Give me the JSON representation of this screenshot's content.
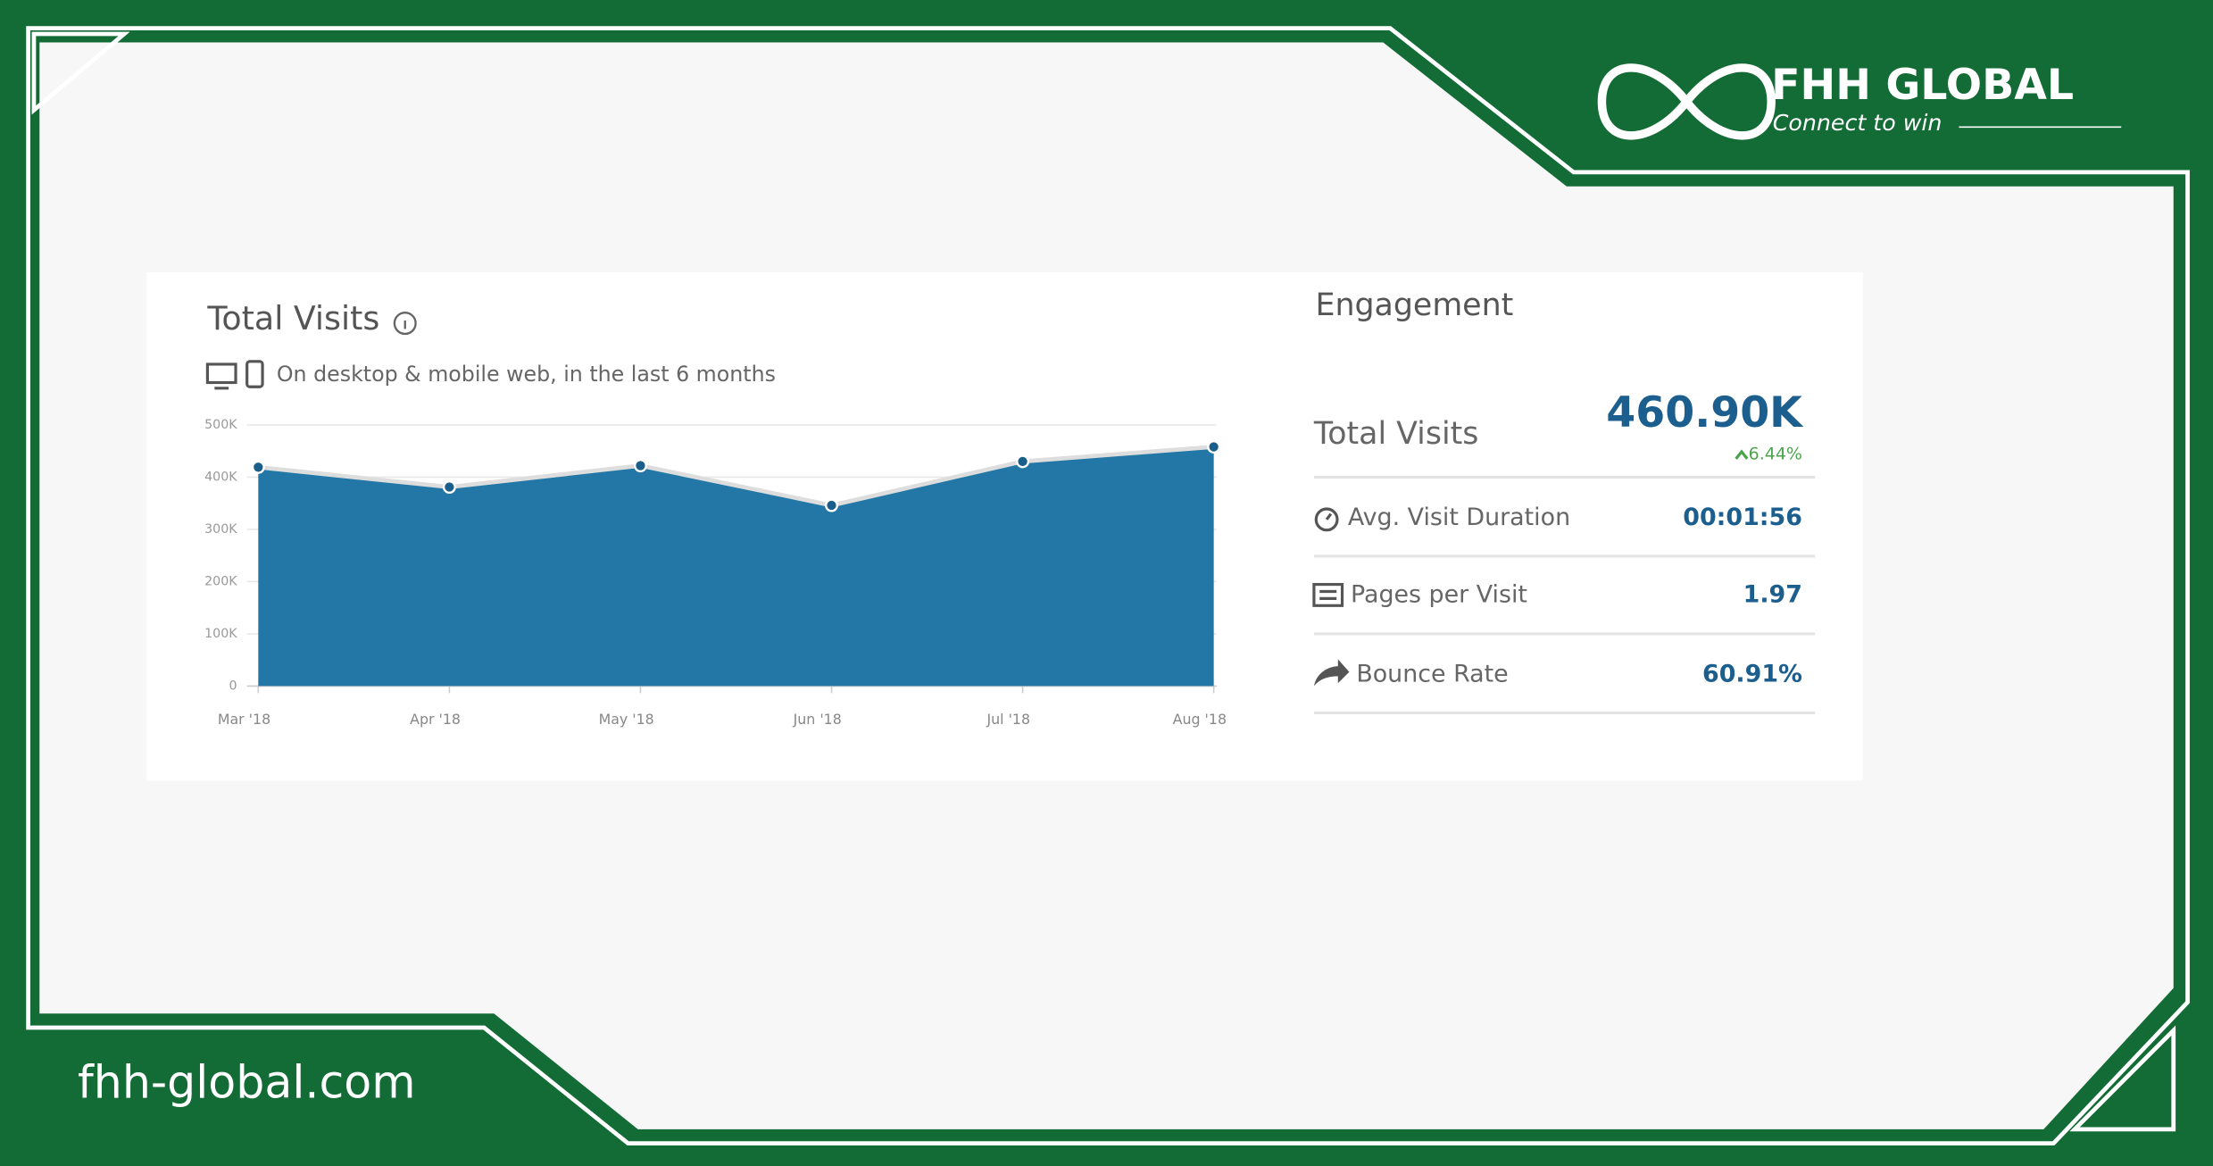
{
  "brand": {
    "name": "FHH GLOBAL",
    "tagline": "Connect to win",
    "website": "fhh-global.com"
  },
  "chart_data": {
    "type": "area",
    "title": "Total Visits",
    "subtitle": "On desktop & mobile web, in the last 6 months",
    "categories": [
      "Mar '18",
      "Apr '18",
      "May '18",
      "Jun '18",
      "Jul '18",
      "Aug '18"
    ],
    "values": [
      419000,
      381000,
      422000,
      346000,
      430000,
      458000
    ],
    "color": "#2277a6",
    "ylim": [
      0,
      500000
    ],
    "yticks": [
      0,
      {
        "value": 100000,
        "label": "100K"
      },
      {
        "value": 200000,
        "label": "200K"
      },
      {
        "value": 300000,
        "label": "300K"
      },
      {
        "value": 400000,
        "label": "400K"
      },
      {
        "value": 500000,
        "label": "500K"
      }
    ],
    "grid": true
  },
  "engagement": {
    "title": "Engagement",
    "total": {
      "label": "Total Visits",
      "value": "460.90K",
      "change": "6.44%"
    },
    "metrics": [
      {
        "label": "Avg. Visit Duration",
        "value": "00:01:56"
      },
      {
        "label": "Pages per Visit",
        "value": "1.97"
      },
      {
        "label": "Bounce Rate",
        "value": "60.91%"
      }
    ]
  }
}
